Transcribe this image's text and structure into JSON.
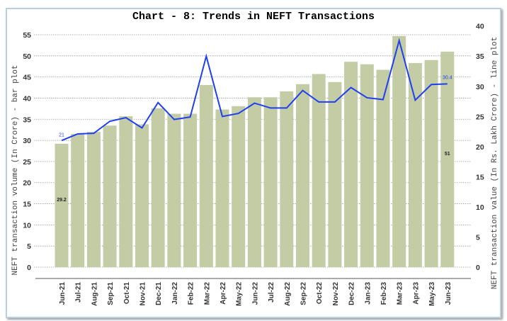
{
  "chart_data": {
    "type": "bar+line",
    "title": "Chart - 8: Trends in NEFT Transactions",
    "categories": [
      "Jun-21",
      "Jul-21",
      "Aug-21",
      "Sep-21",
      "Oct-21",
      "Nov-21",
      "Dec-21",
      "Jan-22",
      "Feb-22",
      "Mar-22",
      "Apr-22",
      "May-22",
      "Jun-22",
      "Jul-22",
      "Aug-22",
      "Sep-22",
      "Oct-22",
      "Nov-22",
      "Dec-22",
      "Jan-23",
      "Feb-23",
      "Mar-23",
      "Apr-23",
      "May-23",
      "Jun-23"
    ],
    "series": [
      {
        "type": "bar",
        "axis": "left",
        "color": "#c3cca5",
        "values": [
          29.2,
          31.5,
          32.0,
          33.5,
          35.7,
          33.8,
          37.6,
          36.3,
          36.3,
          43.1,
          37.3,
          38.1,
          40.2,
          40.2,
          41.6,
          43.3,
          45.7,
          43.8,
          48.6,
          48.0,
          46.7,
          54.7,
          48.3,
          49.0,
          51
        ]
      },
      {
        "type": "line",
        "axis": "right",
        "color": "#1f3ff0",
        "values": [
          21,
          22.1,
          22.2,
          24.2,
          24.8,
          23.1,
          27.3,
          24.5,
          24.9,
          35.0,
          25.0,
          25.5,
          27.2,
          26.4,
          26.4,
          29.3,
          27.4,
          27.4,
          29.8,
          28.1,
          27.8,
          37.6,
          27.7,
          30.3,
          30.4
        ]
      }
    ],
    "data_labels": {
      "bar_first": "29.2",
      "bar_last": "51",
      "line_first": "21",
      "line_last": "30.4"
    },
    "ylabel": "NEFT transaction volume (In Crore) - bar plot",
    "y2label": "NEFT transaction value (In Rs. Lakh Crore) - line plot",
    "ylim": [
      0,
      55
    ],
    "yticks": [
      0,
      5,
      10,
      15,
      20,
      25,
      30,
      35,
      40,
      45,
      50,
      55
    ],
    "y2lim": [
      0,
      40
    ],
    "y2ticks": [
      0,
      5,
      10,
      15,
      20,
      25,
      30,
      35,
      40
    ],
    "grid": true,
    "legend": "none"
  }
}
